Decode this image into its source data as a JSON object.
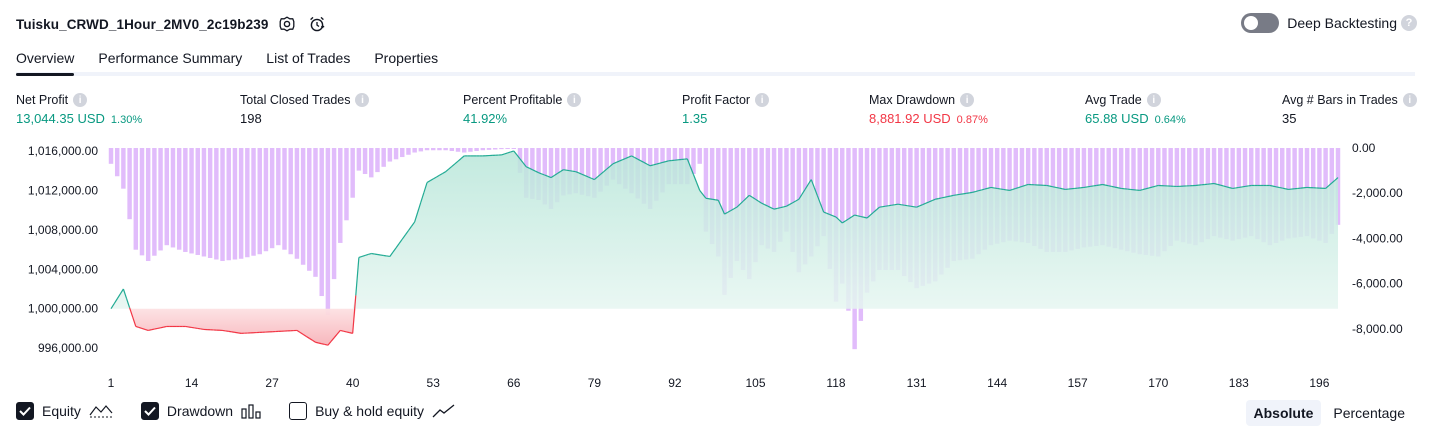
{
  "header": {
    "title": "Tuisku_CRWD_1Hour_2MV0_2c19b239",
    "deep_backtesting_label": "Deep Backtesting",
    "deep_backtesting_enabled": false
  },
  "tabs": [
    {
      "label": "Overview",
      "active": true
    },
    {
      "label": "Performance Summary",
      "active": false
    },
    {
      "label": "List of Trades",
      "active": false
    },
    {
      "label": "Properties",
      "active": false
    }
  ],
  "metrics": [
    {
      "label": "Net Profit",
      "value": "13,044.35 USD",
      "sub": "1.30%",
      "color": "green"
    },
    {
      "label": "Total Closed Trades",
      "value": "198",
      "sub": "",
      "color": "dark"
    },
    {
      "label": "Percent Profitable",
      "value": "41.92%",
      "sub": "",
      "color": "green"
    },
    {
      "label": "Profit Factor",
      "value": "1.35",
      "sub": "",
      "color": "green"
    },
    {
      "label": "Max Drawdown",
      "value": "8,881.92 USD",
      "sub": "0.87%",
      "color": "red"
    },
    {
      "label": "Avg Trade",
      "value": "65.88 USD",
      "sub": "0.64%",
      "color": "green"
    },
    {
      "label": "Avg # Bars in Trades",
      "value": "35",
      "sub": "",
      "color": "dark"
    }
  ],
  "legend": {
    "equity": {
      "label": "Equity",
      "checked": true
    },
    "drawdown": {
      "label": "Drawdown",
      "checked": true
    },
    "buy_hold": {
      "label": "Buy & hold equity",
      "checked": false
    }
  },
  "modes": {
    "absolute": "Absolute",
    "percentage": "Percentage",
    "selected": "absolute"
  },
  "colors": {
    "equity_line_up": "#22ab94",
    "equity_line_down": "#f23645",
    "equity_fill_up": "#d2f0e8",
    "equity_fill_down": "#f9c9cd",
    "drawdown_bar": "#ce93f8",
    "text": "#131722"
  },
  "chart_data": {
    "type": "area",
    "x_ticks": [
      "1",
      "14",
      "27",
      "40",
      "53",
      "66",
      "79",
      "92",
      "105",
      "118",
      "131",
      "144",
      "157",
      "170",
      "183",
      "196"
    ],
    "y_left_ticks": [
      "1,016,000.00",
      "1,012,000.00",
      "1,008,000.00",
      "1,004,000.00",
      "1,000,000.00",
      "996,000.00"
    ],
    "y_right_ticks": [
      "0.00",
      "-2,000.00",
      "-4,000.00",
      "-6,000.00",
      "-8,000.00"
    ],
    "left_ylim": [
      994800,
      1016300
    ],
    "right_ylim": [
      -9380,
      0
    ],
    "baseline": 1000000,
    "series": [
      {
        "name": "Equity",
        "x": [
          1,
          3,
          5,
          7,
          10,
          13,
          16,
          19,
          22,
          25,
          28,
          31,
          34,
          36,
          38,
          40,
          41,
          43,
          46,
          50,
          52,
          55,
          58,
          61,
          64,
          66,
          68,
          70,
          72,
          74,
          76,
          79,
          82,
          85,
          88,
          91,
          94,
          96,
          97,
          99,
          100,
          102,
          104,
          106,
          108,
          110,
          112,
          114,
          116,
          118,
          119,
          120,
          121,
          123,
          125,
          128,
          131,
          134,
          137,
          140,
          143,
          146,
          149,
          152,
          155,
          158,
          161,
          164,
          167,
          170,
          173,
          176,
          179,
          182,
          185,
          188,
          191,
          194,
          197,
          199
        ],
        "values": [
          1000000,
          1002000,
          998200,
          997800,
          998200,
          998200,
          997900,
          997800,
          997500,
          997600,
          997700,
          997800,
          996600,
          996300,
          997800,
          997500,
          1005200,
          1005600,
          1005300,
          1008800,
          1012800,
          1013900,
          1015500,
          1015500,
          1015600,
          1016000,
          1014400,
          1013800,
          1013300,
          1014100,
          1013900,
          1013100,
          1014700,
          1015500,
          1014500,
          1015000,
          1015200,
          1012000,
          1011200,
          1011000,
          1009600,
          1010300,
          1011500,
          1010700,
          1010100,
          1010400,
          1011100,
          1013100,
          1009800,
          1009300,
          1008700,
          1009100,
          1009500,
          1009200,
          1010300,
          1010600,
          1010300,
          1011100,
          1011500,
          1011800,
          1012300,
          1012000,
          1012600,
          1012500,
          1012100,
          1012300,
          1012600,
          1012200,
          1012000,
          1012500,
          1012400,
          1012500,
          1012700,
          1012200,
          1012500,
          1012500,
          1012100,
          1012300,
          1012200,
          1013300
        ]
      },
      {
        "name": "Drawdown",
        "x": [
          1,
          3,
          5,
          7,
          10,
          13,
          16,
          19,
          22,
          25,
          28,
          31,
          34,
          36,
          38,
          40,
          41,
          43,
          46,
          50,
          52,
          55,
          58,
          61,
          64,
          66,
          68,
          70,
          72,
          74,
          76,
          79,
          82,
          85,
          88,
          91,
          94,
          96,
          97,
          99,
          100,
          102,
          104,
          106,
          108,
          110,
          112,
          114,
          116,
          118,
          119,
          120,
          121,
          123,
          125,
          128,
          131,
          134,
          137,
          140,
          143,
          146,
          149,
          152,
          155,
          158,
          161,
          164,
          167,
          170,
          173,
          176,
          179,
          182,
          185,
          188,
          191,
          194,
          197,
          199
        ],
        "values": [
          -700,
          -1800,
          -4500,
          -5000,
          -4300,
          -4600,
          -4800,
          -5000,
          -4900,
          -4700,
          -4300,
          -4900,
          -5700,
          -7400,
          -4200,
          -2200,
          -1000,
          -1300,
          -600,
          -200,
          -100,
          -100,
          -200,
          -100,
          -50,
          0,
          -2200,
          -2300,
          -2700,
          -2100,
          -2000,
          -2200,
          -1400,
          -2000,
          -2700,
          -1600,
          -1600,
          -700,
          -3700,
          -4800,
          -6500,
          -5000,
          -5800,
          -4300,
          -4600,
          -3700,
          -5500,
          -4800,
          -3900,
          -6800,
          -6000,
          -7200,
          -8900,
          -6400,
          -5400,
          -5400,
          -6200,
          -5900,
          -5000,
          -4900,
          -4300,
          -4100,
          -4200,
          -4600,
          -4600,
          -4400,
          -4300,
          -4500,
          -4700,
          -4800,
          -4100,
          -4300,
          -3900,
          -4100,
          -3900,
          -4300,
          -4000,
          -3900,
          -4200,
          -3400
        ]
      }
    ],
    "grid": false,
    "legend": "bottom-left"
  }
}
